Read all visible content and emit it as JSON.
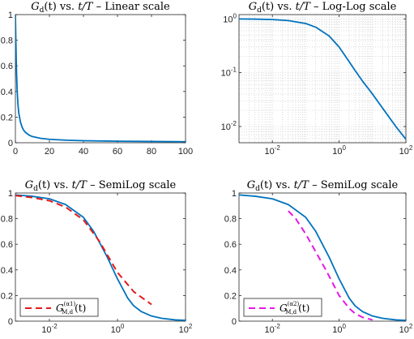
{
  "chart_data": [
    {
      "type": "line",
      "title": "G_d(t) vs. t/T – Linear scale",
      "title_parts": {
        "func": "G",
        "sub": "d",
        "mid": "(t) vs. ",
        "var": "t/T",
        "rest": " – Linear scale"
      },
      "xscale": "linear",
      "yscale": "linear",
      "xlim": [
        0,
        100
      ],
      "ylim": [
        0,
        1
      ],
      "xticks": [
        0,
        20,
        40,
        60,
        80,
        100
      ],
      "yticks": [
        0,
        0.2,
        0.4,
        0.6,
        0.8,
        1
      ],
      "xticklabels": [
        "0",
        "20",
        "40",
        "60",
        "80",
        "100"
      ],
      "yticklabels": [
        "0",
        "0.2",
        "0.4",
        "0.6",
        "0.8",
        "1"
      ],
      "grid": false,
      "series": [
        {
          "color": "#0072BD",
          "style": "solid",
          "x": [
            0,
            0.3,
            0.6,
            1,
            1.5,
            2,
            3,
            4,
            5,
            6,
            8,
            10,
            15,
            20,
            30,
            40,
            60,
            80,
            100
          ],
          "y": [
            1.0,
            0.78,
            0.58,
            0.42,
            0.3,
            0.23,
            0.16,
            0.12,
            0.095,
            0.08,
            0.06,
            0.048,
            0.034,
            0.027,
            0.02,
            0.016,
            0.012,
            0.01,
            0.008
          ]
        }
      ]
    },
    {
      "type": "line",
      "title": "G_d(t) vs. t/T – Log-Log scale",
      "title_parts": {
        "func": "G",
        "sub": "d",
        "mid": "(t) vs. ",
        "var": "t/T",
        "rest": " – Log-Log scale"
      },
      "xscale": "log",
      "yscale": "log",
      "xlim": [
        0.001,
        100
      ],
      "ylim": [
        0.005,
        1.2
      ],
      "xticks": [
        0.01,
        1,
        100
      ],
      "yticks": [
        0.01,
        0.1,
        1
      ],
      "xticklabels": [
        {
          "base": "10",
          "exp": "-2"
        },
        {
          "base": "10",
          "exp": "0"
        },
        {
          "base": "10",
          "exp": "2"
        }
      ],
      "yticklabels": [
        {
          "base": "10",
          "exp": "-2"
        },
        {
          "base": "10",
          "exp": "-1"
        },
        {
          "base": "10",
          "exp": "0"
        }
      ],
      "grid": true,
      "series": [
        {
          "color": "#0072BD",
          "style": "solid",
          "x": [
            0.001,
            0.003,
            0.01,
            0.03,
            0.1,
            0.2,
            0.5,
            1,
            2,
            3,
            5,
            10,
            20,
            50,
            100
          ],
          "y": [
            0.995,
            0.99,
            0.97,
            0.93,
            0.82,
            0.7,
            0.48,
            0.3,
            0.16,
            0.11,
            0.07,
            0.04,
            0.022,
            0.01,
            0.0058
          ]
        }
      ]
    },
    {
      "type": "line",
      "title": "G_d(t) vs. t/T – SemiLog scale",
      "title_parts": {
        "func": "G",
        "sub": "d",
        "mid": "(t) vs. ",
        "var": "t/T",
        "rest": " – SemiLog scale"
      },
      "xscale": "log",
      "yscale": "linear",
      "xlim": [
        0.001,
        100
      ],
      "ylim": [
        0,
        1
      ],
      "xticks": [
        0.01,
        1,
        100
      ],
      "yticks": [
        0,
        0.2,
        0.4,
        0.6,
        0.8,
        1
      ],
      "xticklabels": [
        {
          "base": "10",
          "exp": "-2"
        },
        {
          "base": "10",
          "exp": "0"
        },
        {
          "base": "10",
          "exp": "2"
        }
      ],
      "yticklabels": [
        "0",
        "0.2",
        "0.4",
        "0.6",
        "0.8",
        "1"
      ],
      "grid": false,
      "legend": {
        "placement": "bottom-left",
        "label": {
          "func": "G",
          "sup": "(α1)",
          "sub": "M,d",
          "arg": "(t)"
        }
      },
      "series": [
        {
          "color": "#0072BD",
          "style": "solid",
          "x": [
            0.001,
            0.003,
            0.01,
            0.03,
            0.1,
            0.2,
            0.5,
            1,
            2,
            3,
            5,
            10,
            20,
            50,
            100
          ],
          "y": [
            0.985,
            0.975,
            0.955,
            0.91,
            0.81,
            0.7,
            0.5,
            0.33,
            0.18,
            0.12,
            0.075,
            0.04,
            0.022,
            0.01,
            0.006
          ]
        },
        {
          "color": "#E41A1C",
          "style": "dashed",
          "x": [
            0.001,
            0.003,
            0.01,
            0.03,
            0.1,
            0.3,
            1,
            3,
            10
          ],
          "y": [
            0.98,
            0.965,
            0.94,
            0.89,
            0.79,
            0.62,
            0.38,
            0.23,
            0.13
          ]
        }
      ]
    },
    {
      "type": "line",
      "title": "G_d(t) vs. t/T – SemiLog scale",
      "title_parts": {
        "func": "G",
        "sub": "d",
        "mid": "(t) vs. ",
        "var": "t/T",
        "rest": " – SemiLog scale"
      },
      "xscale": "log",
      "yscale": "linear",
      "xlim": [
        0.001,
        100
      ],
      "ylim": [
        0,
        1
      ],
      "xticks": [
        0.01,
        1,
        100
      ],
      "yticks": [
        0,
        0.2,
        0.4,
        0.6,
        0.8,
        1
      ],
      "xticklabels": [
        {
          "base": "10",
          "exp": "-2"
        },
        {
          "base": "10",
          "exp": "0"
        },
        {
          "base": "10",
          "exp": "2"
        }
      ],
      "yticklabels": [
        "0",
        "0.2",
        "0.4",
        "0.6",
        "0.8",
        "1"
      ],
      "grid": false,
      "legend": {
        "placement": "bottom-left",
        "label": {
          "func": "G",
          "sup": "(α2)",
          "sub": "M,d",
          "arg": "(t)"
        }
      },
      "series": [
        {
          "color": "#0072BD",
          "style": "solid",
          "x": [
            0.001,
            0.003,
            0.01,
            0.03,
            0.1,
            0.2,
            0.5,
            1,
            2,
            3,
            5,
            10,
            20,
            50,
            100
          ],
          "y": [
            0.985,
            0.975,
            0.955,
            0.91,
            0.81,
            0.7,
            0.5,
            0.33,
            0.18,
            0.12,
            0.075,
            0.04,
            0.022,
            0.01,
            0.006
          ]
        },
        {
          "color": "#E619E6",
          "style": "dashed",
          "x": [
            0.03,
            0.05,
            0.1,
            0.2,
            0.4,
            1,
            2,
            3,
            5,
            10
          ],
          "y": [
            0.86,
            0.8,
            0.68,
            0.54,
            0.4,
            0.2,
            0.1,
            0.06,
            0.03,
            0.01
          ]
        }
      ]
    }
  ]
}
